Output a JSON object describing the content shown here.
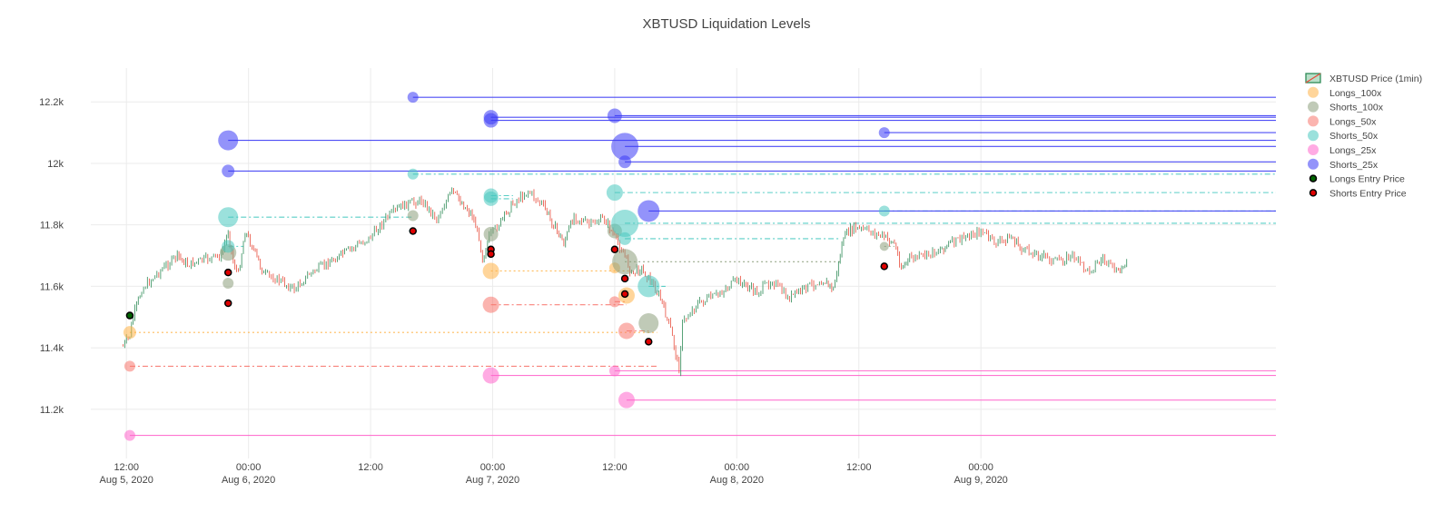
{
  "chart_data": {
    "type": "scatter",
    "title": "XBTUSD Liquidation Levels",
    "xlabel": "",
    "ylabel": "",
    "x_range": [
      "2020-08-05 08:30",
      "2020-08-10 05:00"
    ],
    "ylim": [
      11040,
      12310
    ],
    "grid": true,
    "legend_placement": "top-right",
    "x_ticks": [
      {
        "t": "2020-08-05 12:00",
        "line1": "12:00",
        "line2": "Aug 5, 2020"
      },
      {
        "t": "2020-08-06 00:00",
        "line1": "00:00",
        "line2": "Aug 6, 2020"
      },
      {
        "t": "2020-08-06 12:00",
        "line1": "12:00",
        "line2": ""
      },
      {
        "t": "2020-08-07 00:00",
        "line1": "00:00",
        "line2": "Aug 7, 2020"
      },
      {
        "t": "2020-08-07 12:00",
        "line1": "12:00",
        "line2": ""
      },
      {
        "t": "2020-08-08 00:00",
        "line1": "00:00",
        "line2": "Aug 8, 2020"
      },
      {
        "t": "2020-08-08 12:00",
        "line1": "12:00",
        "line2": ""
      },
      {
        "t": "2020-08-09 00:00",
        "line1": "00:00",
        "line2": "Aug 9, 2020"
      }
    ],
    "y_ticks": [
      {
        "v": 11200,
        "label": "11.2k"
      },
      {
        "v": 11400,
        "label": "11.4k"
      },
      {
        "v": 11600,
        "label": "11.6k"
      },
      {
        "v": 11800,
        "label": "11.8k"
      },
      {
        "v": 12000,
        "label": "12k"
      },
      {
        "v": 12200,
        "label": "12.2k"
      }
    ],
    "price_path": [
      [
        "2020-08-05 11:40",
        11405
      ],
      [
        "2020-08-05 12:20",
        11440
      ],
      [
        "2020-08-05 12:40",
        11500
      ],
      [
        "2020-08-05 13:30",
        11590
      ],
      [
        "2020-08-05 15:00",
        11640
      ],
      [
        "2020-08-05 17:00",
        11700
      ],
      [
        "2020-08-05 18:00",
        11670
      ],
      [
        "2020-08-05 20:00",
        11690
      ],
      [
        "2020-08-05 21:20",
        11700
      ],
      [
        "2020-08-05 22:00",
        11780
      ],
      [
        "2020-08-05 22:30",
        11680
      ],
      [
        "2020-08-05 23:00",
        11640
      ],
      [
        "2020-08-05 23:40",
        11780
      ],
      [
        "2020-08-06 00:30",
        11720
      ],
      [
        "2020-08-06 01:30",
        11640
      ],
      [
        "2020-08-06 03:00",
        11620
      ],
      [
        "2020-08-06 04:30",
        11590
      ],
      [
        "2020-08-06 06:00",
        11640
      ],
      [
        "2020-08-06 08:00",
        11680
      ],
      [
        "2020-08-06 10:00",
        11720
      ],
      [
        "2020-08-06 12:00",
        11760
      ],
      [
        "2020-08-06 13:30",
        11820
      ],
      [
        "2020-08-06 15:00",
        11860
      ],
      [
        "2020-08-06 17:00",
        11880
      ],
      [
        "2020-08-06 18:30",
        11820
      ],
      [
        "2020-08-06 20:00",
        11910
      ],
      [
        "2020-08-06 21:00",
        11870
      ],
      [
        "2020-08-06 22:00",
        11830
      ],
      [
        "2020-08-06 22:40",
        11760
      ],
      [
        "2020-08-06 23:00",
        11690
      ],
      [
        "2020-08-06 23:40",
        11760
      ],
      [
        "2020-08-07 01:00",
        11820
      ],
      [
        "2020-08-07 02:00",
        11870
      ],
      [
        "2020-08-07 03:30",
        11910
      ],
      [
        "2020-08-07 05:00",
        11860
      ],
      [
        "2020-08-07 06:00",
        11800
      ],
      [
        "2020-08-07 07:00",
        11740
      ],
      [
        "2020-08-07 08:00",
        11830
      ],
      [
        "2020-08-07 09:30",
        11800
      ],
      [
        "2020-08-07 11:00",
        11820
      ],
      [
        "2020-08-07 12:00",
        11760
      ],
      [
        "2020-08-07 13:00",
        11700
      ],
      [
        "2020-08-07 13:40",
        11640
      ],
      [
        "2020-08-07 14:30",
        11660
      ],
      [
        "2020-08-07 15:30",
        11620
      ],
      [
        "2020-08-07 16:30",
        11560
      ],
      [
        "2020-08-07 17:30",
        11460
      ],
      [
        "2020-08-07 18:00",
        11380
      ],
      [
        "2020-08-07 18:20",
        11330
      ],
      [
        "2020-08-07 18:40",
        11480
      ],
      [
        "2020-08-07 20:00",
        11540
      ],
      [
        "2020-08-07 22:00",
        11570
      ],
      [
        "2020-08-08 00:00",
        11620
      ],
      [
        "2020-08-08 02:00",
        11580
      ],
      [
        "2020-08-08 03:30",
        11620
      ],
      [
        "2020-08-08 05:00",
        11560
      ],
      [
        "2020-08-08 07:00",
        11600
      ],
      [
        "2020-08-08 08:30",
        11620
      ],
      [
        "2020-08-08 09:30",
        11590
      ],
      [
        "2020-08-08 10:30",
        11760
      ],
      [
        "2020-08-08 11:30",
        11790
      ],
      [
        "2020-08-08 13:00",
        11780
      ],
      [
        "2020-08-08 14:30",
        11760
      ],
      [
        "2020-08-08 15:30",
        11740
      ],
      [
        "2020-08-08 16:10",
        11660
      ],
      [
        "2020-08-08 17:00",
        11690
      ],
      [
        "2020-08-08 18:30",
        11700
      ],
      [
        "2020-08-08 20:00",
        11720
      ],
      [
        "2020-08-08 21:00",
        11740
      ],
      [
        "2020-08-08 22:30",
        11760
      ],
      [
        "2020-08-09 00:00",
        11780
      ],
      [
        "2020-08-09 01:30",
        11740
      ],
      [
        "2020-08-09 03:00",
        11760
      ],
      [
        "2020-08-09 04:00",
        11720
      ],
      [
        "2020-08-09 06:00",
        11700
      ],
      [
        "2020-08-09 07:30",
        11680
      ],
      [
        "2020-08-09 09:00",
        11700
      ],
      [
        "2020-08-09 10:30",
        11650
      ],
      [
        "2020-08-09 12:00",
        11690
      ],
      [
        "2020-08-09 13:30",
        11640
      ],
      [
        "2020-08-09 14:30",
        11700
      ]
    ],
    "series": [
      {
        "name": "Longs_100x",
        "color": "#ffb347",
        "points": [
          {
            "t": "2020-08-05 12:20",
            "y": 11450,
            "r": 7,
            "end": "2020-08-07 16:10",
            "dash": "dot"
          },
          {
            "t": "2020-08-06 23:50",
            "y": 11650,
            "r": 9,
            "end": "2020-08-07 13:30",
            "dash": "dot"
          },
          {
            "t": "2020-08-07 12:00",
            "y": 11660,
            "r": 6
          },
          {
            "t": "2020-08-07 13:10",
            "y": 11570,
            "r": 9
          }
        ]
      },
      {
        "name": "Shorts_100x",
        "color": "#8c9e7c",
        "points": [
          {
            "t": "2020-08-05 22:00",
            "y": 11610,
            "r": 6
          },
          {
            "t": "2020-08-05 22:00",
            "y": 11710,
            "r": 9
          },
          {
            "t": "2020-08-06 16:10",
            "y": 11830,
            "r": 6
          },
          {
            "t": "2020-08-06 23:50",
            "y": 11770,
            "r": 8
          },
          {
            "t": "2020-08-07 12:00",
            "y": 11780,
            "r": 8
          },
          {
            "t": "2020-08-07 13:00",
            "y": 11680,
            "r": 14,
            "end": "2020-08-08 10:10",
            "dash": "dot"
          },
          {
            "t": "2020-08-07 15:20",
            "y": 11480,
            "r": 11
          },
          {
            "t": "2020-08-08 14:30",
            "y": 11730,
            "r": 5,
            "end": "2020-08-08 15:30",
            "dash": "dot"
          }
        ]
      },
      {
        "name": "Longs_50x",
        "color": "#f8766d",
        "points": [
          {
            "t": "2020-08-05 12:20",
            "y": 11340,
            "r": 6,
            "end": "2020-08-07 16:10",
            "dash": "dashdot"
          },
          {
            "t": "2020-08-06 23:50",
            "y": 11540,
            "r": 9,
            "end": "2020-08-07 13:10",
            "dash": "dashdot"
          },
          {
            "t": "2020-08-07 12:00",
            "y": 11550,
            "r": 6,
            "end": "2020-08-07 13:10",
            "dash": "dashdot"
          },
          {
            "t": "2020-08-07 13:10",
            "y": 11455,
            "r": 9,
            "end": "2020-08-07 15:20",
            "dash": "dashdot"
          }
        ]
      },
      {
        "name": "Shorts_50x",
        "color": "#48c9c0",
        "points": [
          {
            "t": "2020-08-05 22:00",
            "y": 11825,
            "r": 11,
            "end": "2020-08-06 16:10",
            "dash": "dashdot"
          },
          {
            "t": "2020-08-05 22:00",
            "y": 11730,
            "r": 7,
            "end": "2020-08-05 23:30",
            "dash": "dashdot"
          },
          {
            "t": "2020-08-06 16:10",
            "y": 11965,
            "r": 6,
            "end": "2020-08-10 05:00",
            "dash": "dashdot"
          },
          {
            "t": "2020-08-06 23:50",
            "y": 11895,
            "r": 8,
            "end": "2020-08-07 02:00",
            "dash": "dashdot"
          },
          {
            "t": "2020-08-06 23:50",
            "y": 11885,
            "r": 8,
            "end": "2020-08-07 02:00",
            "dash": "dashdot"
          },
          {
            "t": "2020-08-07 12:00",
            "y": 11905,
            "r": 9,
            "end": "2020-08-10 05:00",
            "dash": "dashdot"
          },
          {
            "t": "2020-08-07 13:00",
            "y": 11805,
            "r": 15,
            "end": "2020-08-10 05:00",
            "dash": "dashdot"
          },
          {
            "t": "2020-08-07 13:00",
            "y": 11755,
            "r": 7,
            "end": "2020-08-08 10:10",
            "dash": "dashdot"
          },
          {
            "t": "2020-08-07 15:20",
            "y": 11600,
            "r": 12,
            "end": "2020-08-07 17:00",
            "dash": "dashdot"
          },
          {
            "t": "2020-08-08 14:30",
            "y": 11845,
            "r": 6,
            "end": "2020-08-10 05:00",
            "dash": "dashdot"
          }
        ]
      },
      {
        "name": "Longs_25x",
        "color": "#ff66cc",
        "points": [
          {
            "t": "2020-08-05 12:20",
            "y": 11115,
            "r": 6,
            "end": "2020-08-10 05:00",
            "dash": "solid"
          },
          {
            "t": "2020-08-06 23:50",
            "y": 11310,
            "r": 9,
            "end": "2020-08-10 05:00",
            "dash": "solid"
          },
          {
            "t": "2020-08-07 12:00",
            "y": 11325,
            "r": 6,
            "end": "2020-08-10 05:00",
            "dash": "solid"
          },
          {
            "t": "2020-08-07 13:10",
            "y": 11230,
            "r": 9,
            "end": "2020-08-10 05:00",
            "dash": "solid"
          }
        ]
      },
      {
        "name": "Shorts_25x",
        "color": "#3b3bf5",
        "points": [
          {
            "t": "2020-08-05 22:00",
            "y": 12075,
            "r": 11,
            "end": "2020-08-10 05:00",
            "dash": "solid"
          },
          {
            "t": "2020-08-05 22:00",
            "y": 11975,
            "r": 7,
            "end": "2020-08-10 05:00",
            "dash": "solid"
          },
          {
            "t": "2020-08-06 16:10",
            "y": 12215,
            "r": 6,
            "end": "2020-08-10 05:00",
            "dash": "solid"
          },
          {
            "t": "2020-08-06 23:50",
            "y": 12150,
            "r": 8,
            "end": "2020-08-10 05:00",
            "dash": "solid"
          },
          {
            "t": "2020-08-06 23:50",
            "y": 12140,
            "r": 8,
            "end": "2020-08-10 05:00",
            "dash": "solid"
          },
          {
            "t": "2020-08-07 12:00",
            "y": 12155,
            "r": 8,
            "end": "2020-08-10 05:00",
            "dash": "solid"
          },
          {
            "t": "2020-08-07 13:00",
            "y": 12055,
            "r": 15,
            "end": "2020-08-10 05:00",
            "dash": "solid"
          },
          {
            "t": "2020-08-07 13:00",
            "y": 12005,
            "r": 7,
            "end": "2020-08-10 05:00",
            "dash": "solid"
          },
          {
            "t": "2020-08-07 15:20",
            "y": 11845,
            "r": 12,
            "end": "2020-08-10 05:00",
            "dash": "solid"
          },
          {
            "t": "2020-08-08 14:30",
            "y": 12100,
            "r": 6,
            "end": "2020-08-10 05:00",
            "dash": "solid"
          }
        ]
      },
      {
        "name": "Longs Entry Price",
        "color": "#006400",
        "points": [
          {
            "t": "2020-08-05 12:20",
            "y": 11505,
            "r": 3.5
          }
        ]
      },
      {
        "name": "Shorts Entry Price",
        "color": "#e00000",
        "points": [
          {
            "t": "2020-08-05 22:00",
            "y": 11645,
            "r": 3.5
          },
          {
            "t": "2020-08-05 22:00",
            "y": 11545,
            "r": 3.5
          },
          {
            "t": "2020-08-06 16:10",
            "y": 11780,
            "r": 3.5
          },
          {
            "t": "2020-08-06 23:50",
            "y": 11720,
            "r": 3.5
          },
          {
            "t": "2020-08-06 23:50",
            "y": 11705,
            "r": 3.5
          },
          {
            "t": "2020-08-07 12:00",
            "y": 11720,
            "r": 3.5
          },
          {
            "t": "2020-08-07 13:00",
            "y": 11625,
            "r": 3.5
          },
          {
            "t": "2020-08-07 13:00",
            "y": 11575,
            "r": 3.5
          },
          {
            "t": "2020-08-07 15:20",
            "y": 11420,
            "r": 3.5
          },
          {
            "t": "2020-08-08 14:30",
            "y": 11665,
            "r": 3.5
          }
        ]
      }
    ],
    "legend": [
      {
        "label": "XBTUSD Price (1min)",
        "kind": "candle",
        "color": "#2e8b57",
        "color2": "#e74c3c"
      },
      {
        "label": "Longs_100x",
        "kind": "bubble",
        "color": "#ffb347"
      },
      {
        "label": "Shorts_100x",
        "kind": "bubble",
        "color": "#8c9e7c"
      },
      {
        "label": "Longs_50x",
        "kind": "bubble",
        "color": "#f8766d"
      },
      {
        "label": "Shorts_50x",
        "kind": "bubble",
        "color": "#48c9c0"
      },
      {
        "label": "Longs_25x",
        "kind": "bubble",
        "color": "#ff66cc"
      },
      {
        "label": "Shorts_25x",
        "kind": "bubble",
        "color": "#3b3bf5"
      },
      {
        "label": "Longs Entry Price",
        "kind": "entry",
        "color": "#006400"
      },
      {
        "label": "Shorts Entry Price",
        "kind": "entry",
        "color": "#e00000"
      }
    ],
    "candle_colors": {
      "up": "#2e8b57",
      "down": "#e74c3c"
    }
  }
}
